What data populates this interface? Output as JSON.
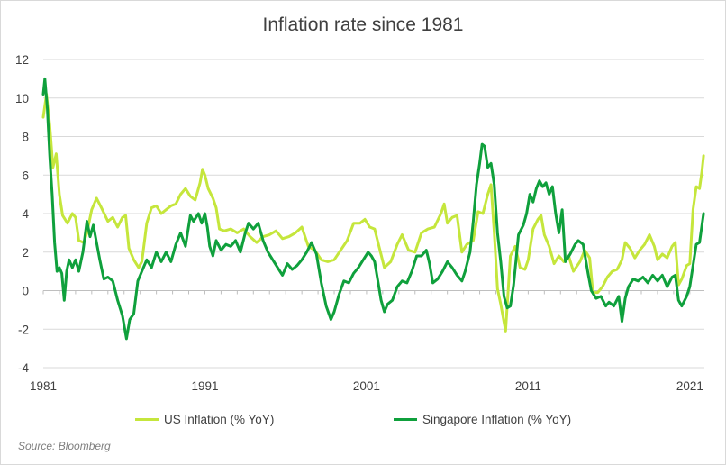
{
  "chart_data": {
    "type": "line",
    "title": "Inflation rate since 1981",
    "xlabel": "",
    "ylabel": "",
    "xlim": [
      1981,
      2021.2
    ],
    "ylim": [
      -4,
      12
    ],
    "x_ticks": [
      "1981",
      "1991",
      "2001",
      "2011",
      "2021"
    ],
    "y_ticks": [
      "12",
      "10",
      "8",
      "6",
      "4",
      "2",
      "0",
      "-2",
      "-4"
    ],
    "grid": "horizontal",
    "legend_position": "bottom",
    "colors": {
      "US Inflation (% YoY)": "#c5e63c",
      "Singapore Inflation (% YoY)": "#0fa03c"
    },
    "source_note": "Source: Bloomberg",
    "series": [
      {
        "name": "US Inflation (% YoY)",
        "points": [
          [
            1981.0,
            9.0
          ],
          [
            1981.2,
            10.2
          ],
          [
            1981.4,
            8.6
          ],
          [
            1981.6,
            6.4
          ],
          [
            1981.8,
            7.1
          ],
          [
            1982.0,
            5.0
          ],
          [
            1982.2,
            3.9
          ],
          [
            1982.5,
            3.5
          ],
          [
            1982.8,
            4.0
          ],
          [
            1983.0,
            3.8
          ],
          [
            1983.2,
            2.6
          ],
          [
            1983.5,
            2.5
          ],
          [
            1983.7,
            3.0
          ],
          [
            1984.0,
            4.2
          ],
          [
            1984.3,
            4.8
          ],
          [
            1984.6,
            4.3
          ],
          [
            1985.0,
            3.6
          ],
          [
            1985.3,
            3.8
          ],
          [
            1985.6,
            3.3
          ],
          [
            1985.9,
            3.8
          ],
          [
            1986.1,
            3.9
          ],
          [
            1986.3,
            2.2
          ],
          [
            1986.6,
            1.6
          ],
          [
            1986.9,
            1.2
          ],
          [
            1987.1,
            1.5
          ],
          [
            1987.4,
            3.5
          ],
          [
            1987.7,
            4.3
          ],
          [
            1988.0,
            4.4
          ],
          [
            1988.3,
            4.0
          ],
          [
            1988.6,
            4.2
          ],
          [
            1988.9,
            4.4
          ],
          [
            1989.2,
            4.5
          ],
          [
            1989.5,
            5.0
          ],
          [
            1989.8,
            5.3
          ],
          [
            1990.1,
            4.9
          ],
          [
            1990.4,
            4.7
          ],
          [
            1990.7,
            5.6
          ],
          [
            1990.85,
            6.3
          ],
          [
            1991.0,
            6.0
          ],
          [
            1991.2,
            5.3
          ],
          [
            1991.5,
            4.8
          ],
          [
            1991.7,
            4.3
          ],
          [
            1991.9,
            3.2
          ],
          [
            1992.2,
            3.1
          ],
          [
            1992.6,
            3.2
          ],
          [
            1993.0,
            3.0
          ],
          [
            1993.4,
            3.2
          ],
          [
            1993.8,
            2.8
          ],
          [
            1994.2,
            2.5
          ],
          [
            1994.6,
            2.8
          ],
          [
            1995.0,
            2.9
          ],
          [
            1995.4,
            3.1
          ],
          [
            1995.8,
            2.7
          ],
          [
            1996.2,
            2.8
          ],
          [
            1996.6,
            3.0
          ],
          [
            1997.0,
            3.3
          ],
          [
            1997.4,
            2.3
          ],
          [
            1997.8,
            2.1
          ],
          [
            1998.2,
            1.6
          ],
          [
            1998.6,
            1.5
          ],
          [
            1999.0,
            1.6
          ],
          [
            1999.4,
            2.1
          ],
          [
            1999.8,
            2.6
          ],
          [
            2000.2,
            3.5
          ],
          [
            2000.6,
            3.5
          ],
          [
            2000.9,
            3.7
          ],
          [
            2001.2,
            3.3
          ],
          [
            2001.5,
            3.2
          ],
          [
            2001.8,
            2.2
          ],
          [
            2002.1,
            1.2
          ],
          [
            2002.5,
            1.5
          ],
          [
            2002.9,
            2.4
          ],
          [
            2003.2,
            2.9
          ],
          [
            2003.6,
            2.1
          ],
          [
            2004.0,
            2.0
          ],
          [
            2004.4,
            3.0
          ],
          [
            2004.8,
            3.2
          ],
          [
            2005.2,
            3.3
          ],
          [
            2005.6,
            4.0
          ],
          [
            2005.8,
            4.5
          ],
          [
            2006.0,
            3.5
          ],
          [
            2006.3,
            3.8
          ],
          [
            2006.6,
            3.9
          ],
          [
            2006.9,
            2.0
          ],
          [
            2007.2,
            2.4
          ],
          [
            2007.6,
            2.6
          ],
          [
            2007.9,
            4.1
          ],
          [
            2008.2,
            4.0
          ],
          [
            2008.5,
            5.0
          ],
          [
            2008.7,
            5.5
          ],
          [
            2008.9,
            3.0
          ],
          [
            2009.1,
            0.1
          ],
          [
            2009.3,
            -0.7
          ],
          [
            2009.6,
            -2.1
          ],
          [
            2009.9,
            1.8
          ],
          [
            2010.2,
            2.3
          ],
          [
            2010.5,
            1.2
          ],
          [
            2010.8,
            1.1
          ],
          [
            2011.0,
            1.6
          ],
          [
            2011.3,
            3.2
          ],
          [
            2011.6,
            3.7
          ],
          [
            2011.8,
            3.9
          ],
          [
            2012.0,
            2.9
          ],
          [
            2012.3,
            2.3
          ],
          [
            2012.6,
            1.4
          ],
          [
            2012.9,
            1.8
          ],
          [
            2013.2,
            1.5
          ],
          [
            2013.5,
            1.8
          ],
          [
            2013.8,
            1.0
          ],
          [
            2014.2,
            1.5
          ],
          [
            2014.5,
            2.1
          ],
          [
            2014.8,
            1.7
          ],
          [
            2015.0,
            -0.1
          ],
          [
            2015.3,
            -0.1
          ],
          [
            2015.6,
            0.2
          ],
          [
            2015.9,
            0.7
          ],
          [
            2016.2,
            1.0
          ],
          [
            2016.5,
            1.1
          ],
          [
            2016.8,
            1.6
          ],
          [
            2017.0,
            2.5
          ],
          [
            2017.3,
            2.2
          ],
          [
            2017.6,
            1.7
          ],
          [
            2017.9,
            2.1
          ],
          [
            2018.2,
            2.4
          ],
          [
            2018.5,
            2.9
          ],
          [
            2018.8,
            2.3
          ],
          [
            2019.0,
            1.6
          ],
          [
            2019.3,
            1.9
          ],
          [
            2019.6,
            1.7
          ],
          [
            2019.9,
            2.3
          ],
          [
            2020.1,
            2.5
          ],
          [
            2020.3,
            0.3
          ],
          [
            2020.5,
            0.6
          ],
          [
            2020.8,
            1.3
          ],
          [
            2021.0,
            1.4
          ],
          [
            2021.2,
            4.2
          ],
          [
            2021.4,
            5.4
          ],
          [
            2021.6,
            5.3
          ],
          [
            2021.75,
            6.2
          ],
          [
            2021.85,
            7.0
          ]
        ]
      },
      {
        "name": "Singapore Inflation (% YoY)",
        "points": [
          [
            1981.0,
            10.2
          ],
          [
            1981.1,
            11.0
          ],
          [
            1981.25,
            9.5
          ],
          [
            1981.4,
            7.0
          ],
          [
            1981.55,
            5.0
          ],
          [
            1981.7,
            2.5
          ],
          [
            1981.85,
            1.0
          ],
          [
            1982.0,
            1.2
          ],
          [
            1982.15,
            0.9
          ],
          [
            1982.3,
            -0.5
          ],
          [
            1982.45,
            1.0
          ],
          [
            1982.6,
            1.6
          ],
          [
            1982.8,
            1.2
          ],
          [
            1983.0,
            1.6
          ],
          [
            1983.2,
            1.0
          ],
          [
            1983.45,
            2.0
          ],
          [
            1983.7,
            3.6
          ],
          [
            1983.9,
            2.8
          ],
          [
            1984.1,
            3.4
          ],
          [
            1984.3,
            2.5
          ],
          [
            1984.5,
            1.6
          ],
          [
            1984.75,
            0.6
          ],
          [
            1985.0,
            0.7
          ],
          [
            1985.3,
            0.5
          ],
          [
            1985.6,
            -0.5
          ],
          [
            1985.9,
            -1.3
          ],
          [
            1986.15,
            -2.5
          ],
          [
            1986.35,
            -1.5
          ],
          [
            1986.6,
            -1.2
          ],
          [
            1986.85,
            0.5
          ],
          [
            1987.1,
            1.0
          ],
          [
            1987.4,
            1.6
          ],
          [
            1987.7,
            1.2
          ],
          [
            1988.0,
            2.0
          ],
          [
            1988.3,
            1.5
          ],
          [
            1988.6,
            2.0
          ],
          [
            1988.9,
            1.5
          ],
          [
            1989.2,
            2.4
          ],
          [
            1989.5,
            3.0
          ],
          [
            1989.8,
            2.3
          ],
          [
            1990.1,
            3.9
          ],
          [
            1990.3,
            3.6
          ],
          [
            1990.6,
            4.0
          ],
          [
            1990.8,
            3.5
          ],
          [
            1991.0,
            4.0
          ],
          [
            1991.15,
            3.3
          ],
          [
            1991.3,
            2.3
          ],
          [
            1991.5,
            1.8
          ],
          [
            1991.7,
            2.6
          ],
          [
            1992.0,
            2.1
          ],
          [
            1992.3,
            2.4
          ],
          [
            1992.6,
            2.3
          ],
          [
            1992.9,
            2.6
          ],
          [
            1993.2,
            2.0
          ],
          [
            1993.5,
            3.0
          ],
          [
            1993.7,
            3.5
          ],
          [
            1994.0,
            3.2
          ],
          [
            1994.3,
            3.5
          ],
          [
            1994.6,
            2.6
          ],
          [
            1994.9,
            2.0
          ],
          [
            1995.2,
            1.6
          ],
          [
            1995.5,
            1.2
          ],
          [
            1995.8,
            0.8
          ],
          [
            1996.1,
            1.4
          ],
          [
            1996.4,
            1.1
          ],
          [
            1996.7,
            1.3
          ],
          [
            1997.0,
            1.6
          ],
          [
            1997.3,
            2.0
          ],
          [
            1997.6,
            2.5
          ],
          [
            1997.9,
            1.9
          ],
          [
            1998.2,
            0.4
          ],
          [
            1998.5,
            -0.8
          ],
          [
            1998.8,
            -1.5
          ],
          [
            1999.0,
            -1.1
          ],
          [
            1999.3,
            -0.2
          ],
          [
            1999.6,
            0.5
          ],
          [
            1999.9,
            0.4
          ],
          [
            2000.2,
            0.9
          ],
          [
            2000.5,
            1.2
          ],
          [
            2000.8,
            1.6
          ],
          [
            2001.1,
            2.0
          ],
          [
            2001.3,
            1.8
          ],
          [
            2001.5,
            1.5
          ],
          [
            2001.7,
            0.5
          ],
          [
            2001.9,
            -0.5
          ],
          [
            2002.1,
            -1.1
          ],
          [
            2002.3,
            -0.7
          ],
          [
            2002.6,
            -0.5
          ],
          [
            2002.9,
            0.2
          ],
          [
            2003.2,
            0.5
          ],
          [
            2003.5,
            0.4
          ],
          [
            2003.8,
            1.0
          ],
          [
            2004.1,
            1.8
          ],
          [
            2004.4,
            1.8
          ],
          [
            2004.7,
            2.1
          ],
          [
            2004.9,
            1.4
          ],
          [
            2005.1,
            0.4
          ],
          [
            2005.4,
            0.6
          ],
          [
            2005.7,
            1.0
          ],
          [
            2006.0,
            1.5
          ],
          [
            2006.3,
            1.2
          ],
          [
            2006.6,
            0.8
          ],
          [
            2006.9,
            0.5
          ],
          [
            2007.1,
            1.0
          ],
          [
            2007.4,
            2.0
          ],
          [
            2007.6,
            3.6
          ],
          [
            2007.8,
            5.5
          ],
          [
            2008.0,
            6.6
          ],
          [
            2008.15,
            7.6
          ],
          [
            2008.3,
            7.5
          ],
          [
            2008.5,
            6.4
          ],
          [
            2008.7,
            6.6
          ],
          [
            2008.9,
            5.5
          ],
          [
            2009.1,
            3.0
          ],
          [
            2009.3,
            1.5
          ],
          [
            2009.5,
            -0.3
          ],
          [
            2009.7,
            -0.9
          ],
          [
            2009.9,
            -0.8
          ],
          [
            2010.1,
            0.3
          ],
          [
            2010.4,
            2.9
          ],
          [
            2010.7,
            3.4
          ],
          [
            2010.9,
            4.0
          ],
          [
            2011.1,
            5.0
          ],
          [
            2011.3,
            4.6
          ],
          [
            2011.5,
            5.3
          ],
          [
            2011.7,
            5.7
          ],
          [
            2011.9,
            5.4
          ],
          [
            2012.1,
            5.6
          ],
          [
            2012.3,
            5.0
          ],
          [
            2012.5,
            5.4
          ],
          [
            2012.7,
            4.0
          ],
          [
            2012.9,
            3.0
          ],
          [
            2013.1,
            4.2
          ],
          [
            2013.3,
            1.5
          ],
          [
            2013.6,
            1.9
          ],
          [
            2013.9,
            2.4
          ],
          [
            2014.1,
            2.6
          ],
          [
            2014.4,
            2.4
          ],
          [
            2014.7,
            0.9
          ],
          [
            2014.9,
            0.0
          ],
          [
            2015.2,
            -0.4
          ],
          [
            2015.5,
            -0.3
          ],
          [
            2015.8,
            -0.8
          ],
          [
            2016.0,
            -0.6
          ],
          [
            2016.3,
            -0.8
          ],
          [
            2016.6,
            -0.3
          ],
          [
            2016.8,
            -1.6
          ],
          [
            2017.0,
            -0.4
          ],
          [
            2017.2,
            0.2
          ],
          [
            2017.5,
            0.6
          ],
          [
            2017.8,
            0.5
          ],
          [
            2018.1,
            0.7
          ],
          [
            2018.4,
            0.4
          ],
          [
            2018.7,
            0.8
          ],
          [
            2019.0,
            0.5
          ],
          [
            2019.3,
            0.8
          ],
          [
            2019.6,
            0.2
          ],
          [
            2019.9,
            0.7
          ],
          [
            2020.1,
            0.8
          ],
          [
            2020.3,
            -0.5
          ],
          [
            2020.5,
            -0.8
          ],
          [
            2020.8,
            -0.3
          ],
          [
            2021.0,
            0.2
          ],
          [
            2021.2,
            1.3
          ],
          [
            2021.4,
            2.4
          ],
          [
            2021.6,
            2.5
          ],
          [
            2021.75,
            3.4
          ],
          [
            2021.85,
            4.0
          ]
        ]
      }
    ]
  }
}
